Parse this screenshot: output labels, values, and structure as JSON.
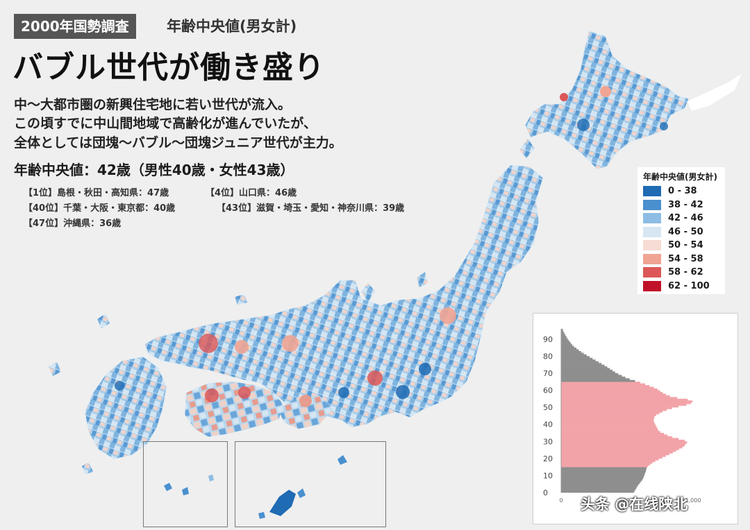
{
  "header": {
    "tag": "2000年国勢調査",
    "subtitle": "年齢中央値(男女計)",
    "headline": "バブル世代が働き盛り"
  },
  "body_lines": [
    "中〜大都市圏の新興住宅地に若い世代が流入。",
    "この頃すでに中山間地域で高齢化が進んでいたが、",
    "全体としては団塊〜バブル〜団塊ジュニア世代が主力。"
  ],
  "median": "年齢中央値：42歳（男性40歳・女性43歳）",
  "rankings": [
    "【1位】島根・秋田・高知県：47歳",
    "【4位】山口県：46歳",
    "【40位】千葉・大阪・東京都：40歳",
    "【43位】滋賀・埼玉・愛知・神奈川県：39歳",
    "【47位】沖縄県：36歳"
  ],
  "legend": {
    "title": "年齢中央値(男女計)",
    "items": [
      {
        "label": "0 - 38",
        "color": "#1f6bb4"
      },
      {
        "label": "38 - 42",
        "color": "#4a90cf"
      },
      {
        "label": "42 - 46",
        "color": "#8dbde4"
      },
      {
        "label": "46 - 50",
        "color": "#d6e7f3"
      },
      {
        "label": "50 - 54",
        "color": "#f6dcd4"
      },
      {
        "label": "54 - 58",
        "color": "#f0a493"
      },
      {
        "label": "58 - 62",
        "color": "#dc5757"
      },
      {
        "label": "62 - 100",
        "color": "#bf1228"
      }
    ]
  },
  "pyramid": {
    "age_ticks": [
      "90",
      "80",
      "70",
      "60",
      "50",
      "40",
      "30",
      "20",
      "10",
      "0"
    ],
    "x_ticks": [
      "0",
      "500,0",
      "1,000"
    ],
    "highlight_color": "#f2a3a8",
    "other_color": "#8e8e8e",
    "highlight_range": [
      15,
      64
    ],
    "profile": [
      [
        0,
        0.55
      ],
      [
        4,
        0.58
      ],
      [
        8,
        0.62
      ],
      [
        12,
        0.64
      ],
      [
        15,
        0.65
      ],
      [
        18,
        0.7
      ],
      [
        21,
        0.78
      ],
      [
        24,
        0.86
      ],
      [
        27,
        0.93
      ],
      [
        30,
        0.96
      ],
      [
        33,
        0.82
      ],
      [
        36,
        0.74
      ],
      [
        39,
        0.72
      ],
      [
        42,
        0.7
      ],
      [
        45,
        0.71
      ],
      [
        48,
        0.78
      ],
      [
        50,
        0.86
      ],
      [
        52,
        0.98
      ],
      [
        54,
        1.0
      ],
      [
        56,
        0.84
      ],
      [
        58,
        0.78
      ],
      [
        61,
        0.72
      ],
      [
        64,
        0.62
      ],
      [
        67,
        0.5
      ],
      [
        70,
        0.42
      ],
      [
        74,
        0.34
      ],
      [
        78,
        0.25
      ],
      [
        82,
        0.16
      ],
      [
        86,
        0.09
      ],
      [
        90,
        0.05
      ],
      [
        94,
        0.02
      ],
      [
        97,
        0.005
      ]
    ]
  },
  "watermark": "头条 @在线陕北"
}
